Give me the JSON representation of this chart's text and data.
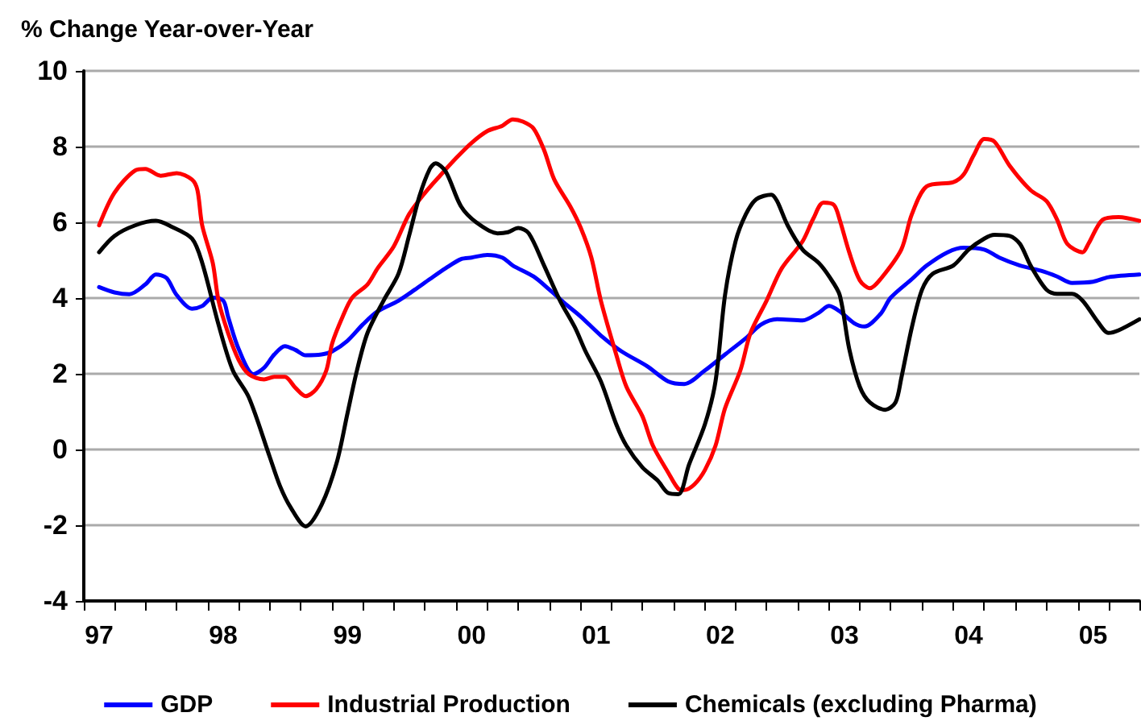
{
  "chart_data": {
    "type": "line",
    "title": "% Change Year-over-Year",
    "xlim": [
      "1997-01-01",
      "2005-07-01"
    ],
    "ylim": [
      -4,
      10
    ],
    "yticks": [
      -4,
      -2,
      0,
      2,
      4,
      6,
      8,
      10
    ],
    "xticks": [
      {
        "value": "1997-01-01",
        "label": null
      },
      {
        "value": "1997-04-01",
        "label": null
      },
      {
        "value": "1997-07-01",
        "label": null
      },
      {
        "value": "1997-10-01",
        "label": null
      },
      {
        "value": "1998-01-01",
        "label": null
      },
      {
        "value": "1998-04-01",
        "label": null
      },
      {
        "value": "1998-07-01",
        "label": null
      },
      {
        "value": "1998-10-01",
        "label": null
      },
      {
        "value": "1999-01-01",
        "label": null
      },
      {
        "value": "1999-04-01",
        "label": null
      },
      {
        "value": "1999-07-01",
        "label": null
      },
      {
        "value": "1999-10-01",
        "label": null
      },
      {
        "value": "2000-01-01",
        "label": null
      },
      {
        "value": "2000-04-01",
        "label": null
      },
      {
        "value": "2000-07-01",
        "label": null
      },
      {
        "value": "2000-10-01",
        "label": null
      },
      {
        "value": "2001-01-01",
        "label": null
      },
      {
        "value": "2001-04-01",
        "label": null
      },
      {
        "value": "2001-07-01",
        "label": null
      },
      {
        "value": "2001-10-01",
        "label": null
      },
      {
        "value": "2002-01-01",
        "label": null
      },
      {
        "value": "2002-04-01",
        "label": null
      },
      {
        "value": "2002-07-01",
        "label": null
      },
      {
        "value": "2002-10-01",
        "label": null
      },
      {
        "value": "2003-01-01",
        "label": null
      },
      {
        "value": "2003-04-01",
        "label": null
      },
      {
        "value": "2003-07-01",
        "label": null
      },
      {
        "value": "2003-10-01",
        "label": null
      },
      {
        "value": "2004-01-01",
        "label": null
      },
      {
        "value": "2004-04-01",
        "label": null
      },
      {
        "value": "2004-07-01",
        "label": null
      },
      {
        "value": "2004-10-01",
        "label": null
      },
      {
        "value": "2005-01-01",
        "label": null
      },
      {
        "value": "2005-04-01",
        "label": null
      },
      {
        "value": "2005-07-01",
        "label": null
      },
      {
        "value": "1997-02-15",
        "label": "97"
      },
      {
        "value": "1998-02-15",
        "label": "98"
      },
      {
        "value": "1999-02-15",
        "label": "99"
      },
      {
        "value": "2000-02-15",
        "label": "00"
      },
      {
        "value": "2001-02-15",
        "label": "01"
      },
      {
        "value": "2002-02-15",
        "label": "02"
      },
      {
        "value": "2003-02-15",
        "label": "03"
      },
      {
        "value": "2004-02-15",
        "label": "04"
      },
      {
        "value": "2005-02-15",
        "label": "05"
      }
    ],
    "grid": "y",
    "legend": "bottom",
    "marker": "none",
    "line_style": "solid",
    "series": [
      {
        "name": "GDP",
        "color": "#0000ff",
        "x": [
          "1997-02-15",
          "1997-04-01",
          "1997-05-15",
          "1997-07-01",
          "1997-08-01",
          "1997-09-01",
          "1997-10-01",
          "1997-11-15",
          "1997-12-15",
          "1998-01-15",
          "1998-02-15",
          "1998-03-01",
          "1998-04-01",
          "1998-05-15",
          "1998-06-15",
          "1998-07-15",
          "1998-08-15",
          "1998-09-15",
          "1998-10-15",
          "1998-12-01",
          "1999-01-01",
          "1999-02-15",
          "1999-04-01",
          "1999-05-15",
          "1999-07-15",
          "1999-09-01",
          "1999-10-15",
          "1999-12-01",
          "2000-01-15",
          "2000-02-15",
          "2000-04-01",
          "2000-05-15",
          "2000-06-15",
          "2000-08-15",
          "2000-10-01",
          "2000-11-15",
          "2001-01-01",
          "2001-03-01",
          "2001-05-01",
          "2001-07-15",
          "2001-09-15",
          "2001-11-01",
          "2002-01-01",
          "2002-03-01",
          "2002-05-01",
          "2002-06-15",
          "2002-08-01",
          "2002-10-15",
          "2002-12-01",
          "2003-01-01",
          "2003-02-01",
          "2003-03-15",
          "2003-04-15",
          "2003-06-01",
          "2003-07-01",
          "2003-09-01",
          "2003-10-15",
          "2003-12-15",
          "2004-02-01",
          "2004-04-01",
          "2004-05-15",
          "2004-07-15",
          "2004-09-15",
          "2004-11-01",
          "2004-12-15",
          "2005-02-15",
          "2005-04-01",
          "2005-07-01"
        ],
        "values": [
          4.29,
          4.15,
          4.1,
          4.36,
          4.62,
          4.53,
          4.08,
          3.72,
          3.79,
          4.01,
          3.93,
          3.51,
          2.66,
          1.99,
          2.16,
          2.51,
          2.73,
          2.63,
          2.49,
          2.51,
          2.59,
          2.87,
          3.3,
          3.65,
          3.93,
          4.22,
          4.5,
          4.79,
          5.03,
          5.07,
          5.14,
          5.07,
          4.86,
          4.57,
          4.22,
          3.86,
          3.51,
          3.01,
          2.59,
          2.2,
          1.8,
          1.73,
          2.09,
          2.51,
          2.94,
          3.3,
          3.44,
          3.41,
          3.61,
          3.79,
          3.65,
          3.34,
          3.25,
          3.58,
          4.01,
          4.5,
          4.86,
          5.21,
          5.33,
          5.28,
          5.07,
          4.86,
          4.72,
          4.57,
          4.4,
          4.43,
          4.55,
          4.62
        ]
      },
      {
        "name": "Industrial Production",
        "color": "#ff0000",
        "x": [
          "1997-02-15",
          "1997-04-01",
          "1997-06-01",
          "1997-07-01",
          "1997-08-15",
          "1997-10-01",
          "1997-11-15",
          "1997-12-01",
          "1997-12-15",
          "1998-01-15",
          "1998-02-01",
          "1998-03-01",
          "1998-04-01",
          "1998-05-01",
          "1998-06-15",
          "1998-07-15",
          "1998-08-15",
          "1998-09-15",
          "1998-10-15",
          "1998-11-15",
          "1998-12-15",
          "1999-01-01",
          "1999-02-01",
          "1999-03-01",
          "1999-04-15",
          "1999-05-15",
          "1999-07-01",
          "1999-08-15",
          "1999-10-01",
          "1999-11-15",
          "2000-01-01",
          "2000-02-15",
          "2000-04-01",
          "2000-05-15",
          "2000-06-15",
          "2000-07-15",
          "2000-08-15",
          "2000-09-15",
          "2000-10-15",
          "2000-12-01",
          "2001-01-01",
          "2001-02-01",
          "2001-03-01",
          "2001-04-15",
          "2001-05-15",
          "2001-07-01",
          "2001-08-01",
          "2001-09-15",
          "2001-10-15",
          "2001-11-01",
          "2001-12-01",
          "2002-01-01",
          "2002-02-01",
          "2002-03-01",
          "2002-04-15",
          "2002-05-15",
          "2002-07-01",
          "2002-08-15",
          "2002-10-15",
          "2002-11-15",
          "2002-12-15",
          "2003-01-15",
          "2003-02-01",
          "2003-03-01",
          "2003-04-01",
          "2003-05-01",
          "2003-06-01",
          "2003-08-01",
          "2003-09-01",
          "2003-10-15",
          "2004-01-01",
          "2004-02-01",
          "2004-03-01",
          "2004-04-01",
          "2004-05-01",
          "2004-06-15",
          "2004-08-15",
          "2004-10-01",
          "2004-11-01",
          "2004-12-01",
          "2005-01-15",
          "2005-02-01",
          "2005-03-15",
          "2005-05-01",
          "2005-07-01"
        ],
        "values": [
          5.92,
          6.78,
          7.37,
          7.41,
          7.23,
          7.3,
          7.13,
          6.85,
          5.92,
          4.93,
          3.93,
          3.08,
          2.37,
          1.99,
          1.85,
          1.92,
          1.92,
          1.63,
          1.41,
          1.59,
          2.09,
          2.8,
          3.51,
          4.01,
          4.36,
          4.79,
          5.36,
          6.21,
          6.78,
          7.24,
          7.7,
          8.1,
          8.41,
          8.55,
          8.72,
          8.66,
          8.48,
          7.91,
          7.13,
          6.42,
          5.85,
          5.07,
          3.93,
          2.51,
          1.66,
          0.88,
          0.1,
          -0.61,
          -1.04,
          -1.07,
          -0.92,
          -0.54,
          0.1,
          1.09,
          2.09,
          3.08,
          3.93,
          4.79,
          5.5,
          6.09,
          6.52,
          6.46,
          6.07,
          5.21,
          4.47,
          4.26,
          4.5,
          5.28,
          6.21,
          6.95,
          7.06,
          7.27,
          7.77,
          8.2,
          8.13,
          7.49,
          6.85,
          6.56,
          6.07,
          5.43,
          5.21,
          5.43,
          6.07,
          6.14,
          6.04
        ]
      },
      {
        "name": "Chemicals (excluding Pharma)",
        "color": "#000000",
        "x": [
          "1997-02-15",
          "1997-04-01",
          "1997-06-01",
          "1997-08-01",
          "1997-09-15",
          "1997-11-15",
          "1997-12-15",
          "1998-02-01",
          "1998-03-15",
          "1998-05-01",
          "1998-07-01",
          "1998-08-01",
          "1998-09-01",
          "1998-10-15",
          "1998-12-01",
          "1999-01-15",
          "1999-02-15",
          "1999-03-15",
          "1999-04-15",
          "1999-06-01",
          "1999-07-15",
          "1999-08-15",
          "1999-09-15",
          "1999-10-15",
          "1999-11-01",
          "1999-12-01",
          "2000-01-15",
          "2000-03-01",
          "2000-05-01",
          "2000-06-01",
          "2000-07-01",
          "2000-08-01",
          "2000-09-15",
          "2000-11-01",
          "2000-12-15",
          "2001-01-15",
          "2001-03-01",
          "2001-04-15",
          "2001-05-15",
          "2001-07-01",
          "2001-08-15",
          "2001-09-15",
          "2001-10-15",
          "2001-11-15",
          "2002-01-01",
          "2002-02-01",
          "2002-03-01",
          "2002-04-01",
          "2002-05-01",
          "2002-06-01",
          "2002-07-15",
          "2002-08-01",
          "2002-09-01",
          "2002-10-15",
          "2002-12-01",
          "2003-01-01",
          "2003-02-01",
          "2003-03-01",
          "2003-04-01",
          "2003-05-01",
          "2003-06-15",
          "2003-07-15",
          "2003-08-01",
          "2003-09-01",
          "2003-10-01",
          "2003-11-01",
          "2004-01-01",
          "2004-02-15",
          "2004-04-01",
          "2004-05-01",
          "2004-06-15",
          "2004-07-15",
          "2004-08-15",
          "2004-10-01",
          "2004-11-01",
          "2004-12-15",
          "2005-01-15",
          "2005-03-01",
          "2005-04-01",
          "2005-05-01",
          "2005-07-01"
        ],
        "values": [
          5.21,
          5.64,
          5.92,
          6.04,
          5.89,
          5.57,
          4.93,
          3.3,
          2.09,
          1.38,
          -0.18,
          -0.97,
          -1.53,
          -2.03,
          -1.46,
          -0.33,
          0.95,
          2.09,
          3.08,
          3.93,
          4.64,
          5.64,
          6.7,
          7.41,
          7.56,
          7.34,
          6.42,
          5.99,
          5.71,
          5.74,
          5.85,
          5.71,
          4.86,
          3.93,
          3.22,
          2.59,
          1.8,
          0.67,
          0.1,
          -0.47,
          -0.82,
          -1.15,
          -1.18,
          -0.4,
          0.67,
          1.8,
          4.08,
          5.5,
          6.21,
          6.61,
          6.73,
          6.56,
          5.92,
          5.28,
          4.93,
          4.57,
          4.08,
          2.66,
          1.66,
          1.24,
          1.05,
          1.24,
          1.88,
          3.22,
          4.22,
          4.64,
          4.86,
          5.28,
          5.57,
          5.67,
          5.64,
          5.43,
          4.86,
          4.22,
          4.11,
          4.11,
          3.93,
          3.37,
          3.08,
          3.15,
          3.44
        ]
      }
    ]
  }
}
